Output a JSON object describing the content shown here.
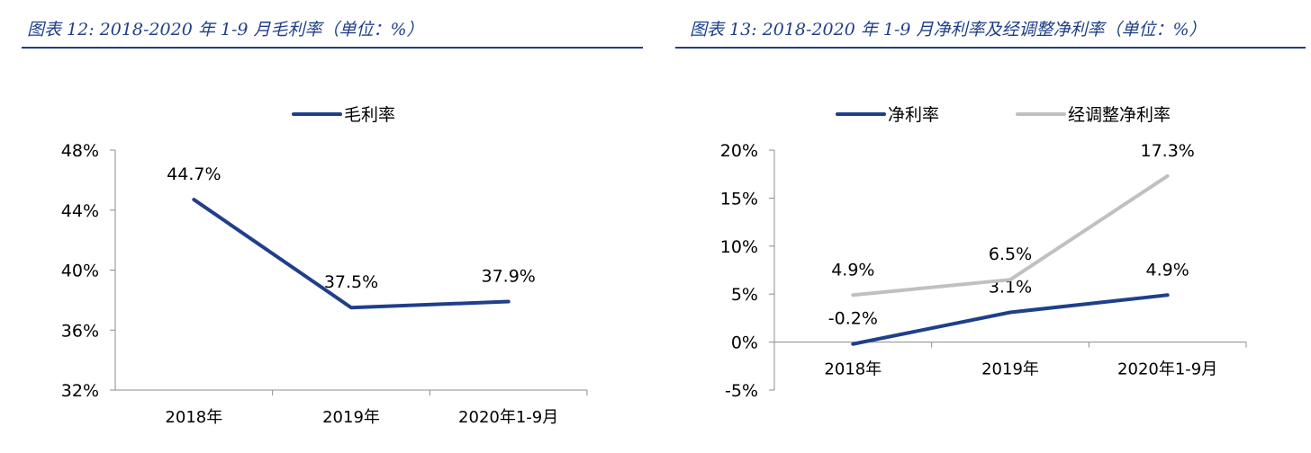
{
  "chart_data": [
    {
      "type": "line",
      "title": "图表 12:  2018-2020 年 1-9 月毛利率（单位：%）",
      "xlabel": "",
      "ylabel": "",
      "categories": [
        "2018年",
        "2019年",
        "2020年1-9月"
      ],
      "series": [
        {
          "name": "毛利率",
          "values": [
            44.7,
            37.5,
            37.9
          ],
          "labels": [
            "44.7%",
            "37.5%",
            "37.9%"
          ],
          "color": "#1f3f8a"
        }
      ],
      "ylim": [
        32,
        48
      ],
      "yticks": [
        32,
        36,
        40,
        44,
        48
      ],
      "ytick_labels": [
        "32%",
        "36%",
        "40%",
        "44%",
        "48%"
      ],
      "grid": false,
      "legend": "top-center"
    },
    {
      "type": "line",
      "title": "图表 13:  2018-2020 年 1-9 月净利率及经调整净利率（单位：%）",
      "xlabel": "",
      "ylabel": "",
      "categories": [
        "2018年",
        "2019年",
        "2020年1-9月"
      ],
      "series": [
        {
          "name": "净利率",
          "values": [
            -0.2,
            3.1,
            4.9
          ],
          "labels": [
            "-0.2%",
            "3.1%",
            "4.9%"
          ],
          "color": "#1f3f8a"
        },
        {
          "name": "经调整净利率",
          "values": [
            4.9,
            6.5,
            17.3
          ],
          "labels": [
            "4.9%",
            "6.5%",
            "17.3%"
          ],
          "color": "#c0c0c0"
        }
      ],
      "ylim": [
        -5,
        20
      ],
      "yticks": [
        -5,
        0,
        5,
        10,
        15,
        20
      ],
      "ytick_labels": [
        "-5%",
        "0%",
        "5%",
        "10%",
        "15%",
        "20%"
      ],
      "grid": false,
      "legend": "top-center"
    }
  ]
}
